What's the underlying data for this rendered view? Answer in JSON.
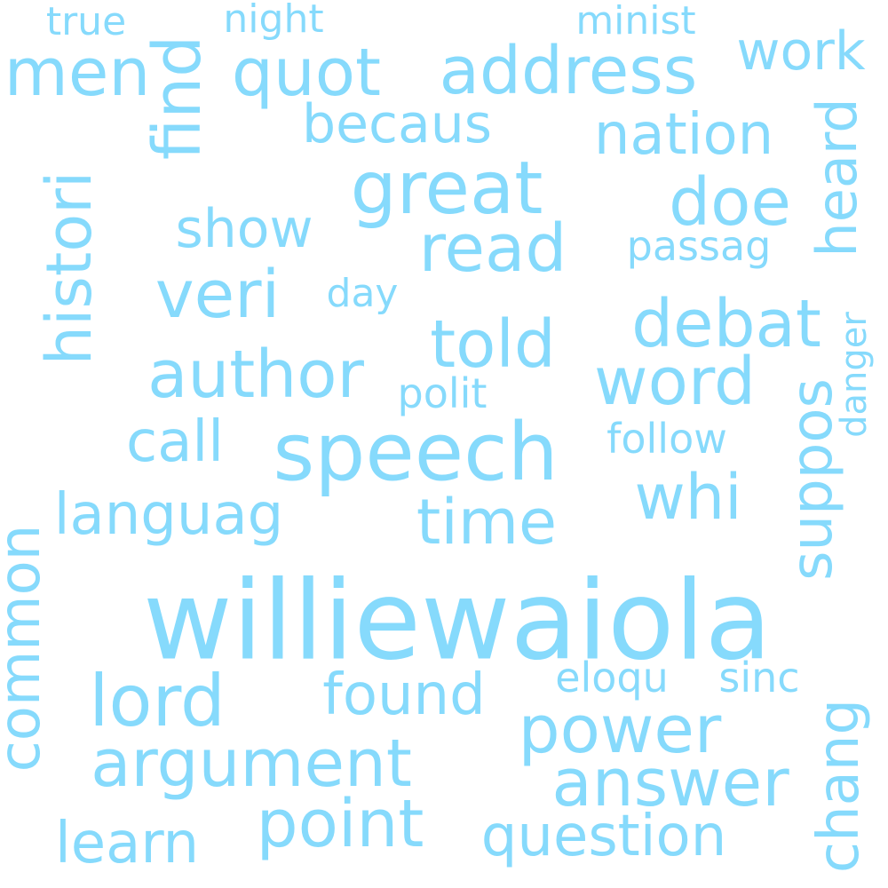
{
  "style": {
    "word_color": "#86dafc",
    "background": "#ffffff"
  },
  "words": [
    {
      "id": "williewaiola",
      "text": "williewaiola"
    },
    {
      "id": "speech",
      "text": "speech"
    },
    {
      "id": "great",
      "text": "great"
    },
    {
      "id": "address",
      "text": "address"
    },
    {
      "id": "quot",
      "text": "quot"
    },
    {
      "id": "men",
      "text": "men"
    },
    {
      "id": "find",
      "text": "find"
    },
    {
      "id": "histori",
      "text": "histori"
    },
    {
      "id": "author",
      "text": "author"
    },
    {
      "id": "argument",
      "text": "argument"
    },
    {
      "id": "lord",
      "text": "lord"
    },
    {
      "id": "power",
      "text": "power"
    },
    {
      "id": "answer",
      "text": "answer"
    },
    {
      "id": "point",
      "text": "point"
    },
    {
      "id": "question",
      "text": "question"
    },
    {
      "id": "debat",
      "text": "debat"
    },
    {
      "id": "word",
      "text": "word"
    },
    {
      "id": "told",
      "text": "told"
    },
    {
      "id": "read",
      "text": "read"
    },
    {
      "id": "doe",
      "text": "doe"
    },
    {
      "id": "veri",
      "text": "veri"
    },
    {
      "id": "time",
      "text": "time"
    },
    {
      "id": "whi",
      "text": "whi"
    },
    {
      "id": "nation",
      "text": "nation"
    },
    {
      "id": "work",
      "text": "work"
    },
    {
      "id": "becaus",
      "text": "becaus"
    },
    {
      "id": "show",
      "text": "show"
    },
    {
      "id": "languag",
      "text": "languag"
    },
    {
      "id": "call",
      "text": "call"
    },
    {
      "id": "found",
      "text": "found"
    },
    {
      "id": "learn",
      "text": "learn"
    },
    {
      "id": "common",
      "text": "common"
    },
    {
      "id": "heard",
      "text": "heard"
    },
    {
      "id": "suppos",
      "text": "suppos"
    },
    {
      "id": "chang",
      "text": "chang"
    },
    {
      "id": "passag",
      "text": "passag"
    },
    {
      "id": "follow",
      "text": "follow"
    },
    {
      "id": "polit",
      "text": "polit"
    },
    {
      "id": "eloqu",
      "text": "eloqu"
    },
    {
      "id": "sinc",
      "text": "sinc"
    },
    {
      "id": "true",
      "text": "true"
    },
    {
      "id": "night",
      "text": "night"
    },
    {
      "id": "minist",
      "text": "minist"
    },
    {
      "id": "day",
      "text": "day"
    },
    {
      "id": "danger",
      "text": "danger"
    }
  ]
}
